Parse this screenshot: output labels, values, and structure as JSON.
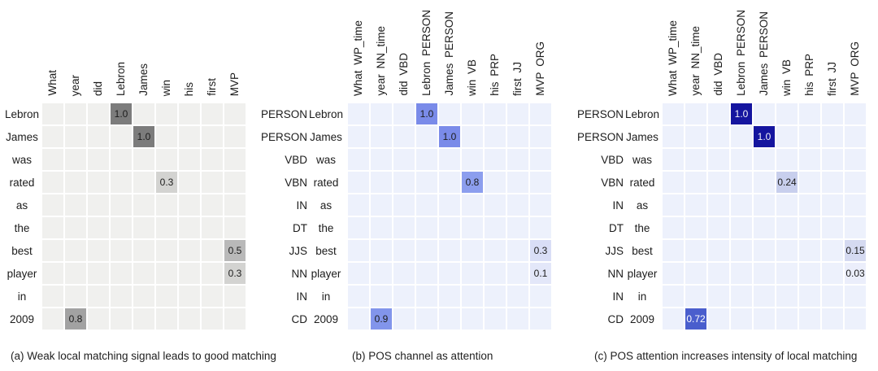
{
  "chart_data": [
    {
      "type": "heatmap",
      "panel": "a",
      "title": "(a) Weak local matching signal leads to good matching",
      "colormap": "grays",
      "background": "#f0f0ee",
      "gridline_color": "#ffffff",
      "x_labels": [
        {
          "word": "What"
        },
        {
          "word": "year"
        },
        {
          "word": "did"
        },
        {
          "word": "Lebron"
        },
        {
          "word": "James"
        },
        {
          "word": "win"
        },
        {
          "word": "his"
        },
        {
          "word": "first"
        },
        {
          "word": "MVP"
        }
      ],
      "y_labels": [
        {
          "word": "Lebron"
        },
        {
          "word": "James"
        },
        {
          "word": "was"
        },
        {
          "word": "rated"
        },
        {
          "word": "as"
        },
        {
          "word": "the"
        },
        {
          "word": "best"
        },
        {
          "word": "player"
        },
        {
          "word": "in"
        },
        {
          "word": "2009"
        }
      ],
      "cells": [
        {
          "row": 0,
          "col": 3,
          "row_label": "Lebron",
          "col_label": "Lebron",
          "value": 1.0,
          "label": "1.0",
          "bg": "#7c7c7c",
          "fg": "#1c1c1c"
        },
        {
          "row": 1,
          "col": 4,
          "row_label": "James",
          "col_label": "James",
          "value": 1.0,
          "label": "1.0",
          "bg": "#7c7c7c",
          "fg": "#1c1c1c"
        },
        {
          "row": 3,
          "col": 5,
          "row_label": "rated",
          "col_label": "win",
          "value": 0.3,
          "label": "0.3",
          "bg": "#d3d3d1",
          "fg": "#1c1c1c"
        },
        {
          "row": 6,
          "col": 8,
          "row_label": "best",
          "col_label": "MVP",
          "value": 0.5,
          "label": "0.5",
          "bg": "#b9b9b9",
          "fg": "#1c1c1c"
        },
        {
          "row": 7,
          "col": 8,
          "row_label": "player",
          "col_label": "MVP",
          "value": 0.3,
          "label": "0.3",
          "bg": "#d3d3d1",
          "fg": "#1c1c1c"
        },
        {
          "row": 9,
          "col": 1,
          "row_label": "2009",
          "col_label": "year",
          "value": 0.8,
          "label": "0.8",
          "bg": "#a2a2a2",
          "fg": "#1c1c1c"
        }
      ]
    },
    {
      "type": "heatmap",
      "panel": "b",
      "title": "(b) POS channel as attention",
      "colormap": "blues-light",
      "background": "#edf1fc",
      "gridline_color": "#ffffff",
      "x_labels": [
        {
          "word": "What",
          "tag": "WP_time"
        },
        {
          "word": "year",
          "tag": "NN_time"
        },
        {
          "word": "did",
          "tag": "VBD"
        },
        {
          "word": "Lebron",
          "tag": "PERSON"
        },
        {
          "word": "James",
          "tag": "PERSON"
        },
        {
          "word": "win",
          "tag": "VB"
        },
        {
          "word": "his",
          "tag": "PRP"
        },
        {
          "word": "first",
          "tag": "JJ"
        },
        {
          "word": "MVP",
          "tag": "ORG"
        }
      ],
      "y_labels": [
        {
          "tag": "PERSON",
          "word": "Lebron"
        },
        {
          "tag": "PERSON",
          "word": "James"
        },
        {
          "tag": "VBD",
          "word": "was"
        },
        {
          "tag": "VBN",
          "word": "rated"
        },
        {
          "tag": "IN",
          "word": "as"
        },
        {
          "tag": "DT",
          "word": "the"
        },
        {
          "tag": "JJS",
          "word": "best"
        },
        {
          "tag": "NN",
          "word": "player"
        },
        {
          "tag": "IN",
          "word": "in"
        },
        {
          "tag": "CD",
          "word": "2009"
        }
      ],
      "cells": [
        {
          "row": 0,
          "col": 3,
          "row_label": "PERSON Lebron",
          "col_label": "Lebron PERSON",
          "value": 1.0,
          "label": "1.0",
          "bg": "#7a8be9",
          "fg": "#1c1c1c"
        },
        {
          "row": 1,
          "col": 4,
          "row_label": "PERSON James",
          "col_label": "James PERSON",
          "value": 1.0,
          "label": "1.0",
          "bg": "#7a8be9",
          "fg": "#1c1c1c"
        },
        {
          "row": 3,
          "col": 5,
          "row_label": "VBN rated",
          "col_label": "win VB",
          "value": 0.8,
          "label": "0.8",
          "bg": "#8c9eee",
          "fg": "#1c1c1c"
        },
        {
          "row": 6,
          "col": 8,
          "row_label": "JJS best",
          "col_label": "MVP ORG",
          "value": 0.3,
          "label": "0.3",
          "bg": "#d9def6",
          "fg": "#1c1c1c"
        },
        {
          "row": 7,
          "col": 8,
          "row_label": "NN player",
          "col_label": "MVP ORG",
          "value": 0.1,
          "label": "0.1",
          "bg": "#e3e7f9",
          "fg": "#1c1c1c"
        },
        {
          "row": 9,
          "col": 1,
          "row_label": "CD 2009",
          "col_label": "year NN_time",
          "value": 0.9,
          "label": "0.9",
          "bg": "#8295eb",
          "fg": "#1c1c1c"
        }
      ]
    },
    {
      "type": "heatmap",
      "panel": "c",
      "title": "(c) POS attention increases intensity of local matching",
      "colormap": "blues-dark",
      "background": "#edf1fc",
      "gridline_color": "#ffffff",
      "x_labels": [
        {
          "word": "What",
          "tag": "WP_time"
        },
        {
          "word": "year",
          "tag": "NN_time"
        },
        {
          "word": "did",
          "tag": "VBD"
        },
        {
          "word": "Lebron",
          "tag": "PERSON"
        },
        {
          "word": "James",
          "tag": "PERSON"
        },
        {
          "word": "win",
          "tag": "VB"
        },
        {
          "word": "his",
          "tag": "PRP"
        },
        {
          "word": "first",
          "tag": "JJ"
        },
        {
          "word": "MVP",
          "tag": "ORG"
        }
      ],
      "y_labels": [
        {
          "tag": "PERSON",
          "word": "Lebron"
        },
        {
          "tag": "PERSON",
          "word": "James"
        },
        {
          "tag": "VBD",
          "word": "was"
        },
        {
          "tag": "VBN",
          "word": "rated"
        },
        {
          "tag": "IN",
          "word": "as"
        },
        {
          "tag": "DT",
          "word": "the"
        },
        {
          "tag": "JJS",
          "word": "best"
        },
        {
          "tag": "NN",
          "word": "player"
        },
        {
          "tag": "IN",
          "word": "in"
        },
        {
          "tag": "CD",
          "word": "2009"
        }
      ],
      "cells": [
        {
          "row": 0,
          "col": 3,
          "row_label": "PERSON Lebron",
          "col_label": "Lebron PERSON",
          "value": 1.0,
          "label": "1.0",
          "bg": "#15159f",
          "fg": "#f4f4fa"
        },
        {
          "row": 1,
          "col": 4,
          "row_label": "PERSON James",
          "col_label": "James PERSON",
          "value": 1.0,
          "label": "1.0",
          "bg": "#15159f",
          "fg": "#f4f4fa"
        },
        {
          "row": 3,
          "col": 5,
          "row_label": "VBN rated",
          "col_label": "win VB",
          "value": 0.24,
          "label": "0.24",
          "bg": "#c8cfed",
          "fg": "#1c1c1c"
        },
        {
          "row": 6,
          "col": 8,
          "row_label": "JJS best",
          "col_label": "MVP ORG",
          "value": 0.15,
          "label": "0.15",
          "bg": "#d5daf1",
          "fg": "#1c1c1c"
        },
        {
          "row": 7,
          "col": 8,
          "row_label": "NN player",
          "col_label": "MVP ORG",
          "value": 0.03,
          "label": "0.03",
          "bg": "#ebeefb",
          "fg": "#1c1c1c"
        },
        {
          "row": 9,
          "col": 1,
          "row_label": "CD 2009",
          "col_label": "year NN_time",
          "value": 0.72,
          "label": "0.72",
          "bg": "#4a5ecd",
          "fg": "#ffffff"
        }
      ]
    }
  ]
}
